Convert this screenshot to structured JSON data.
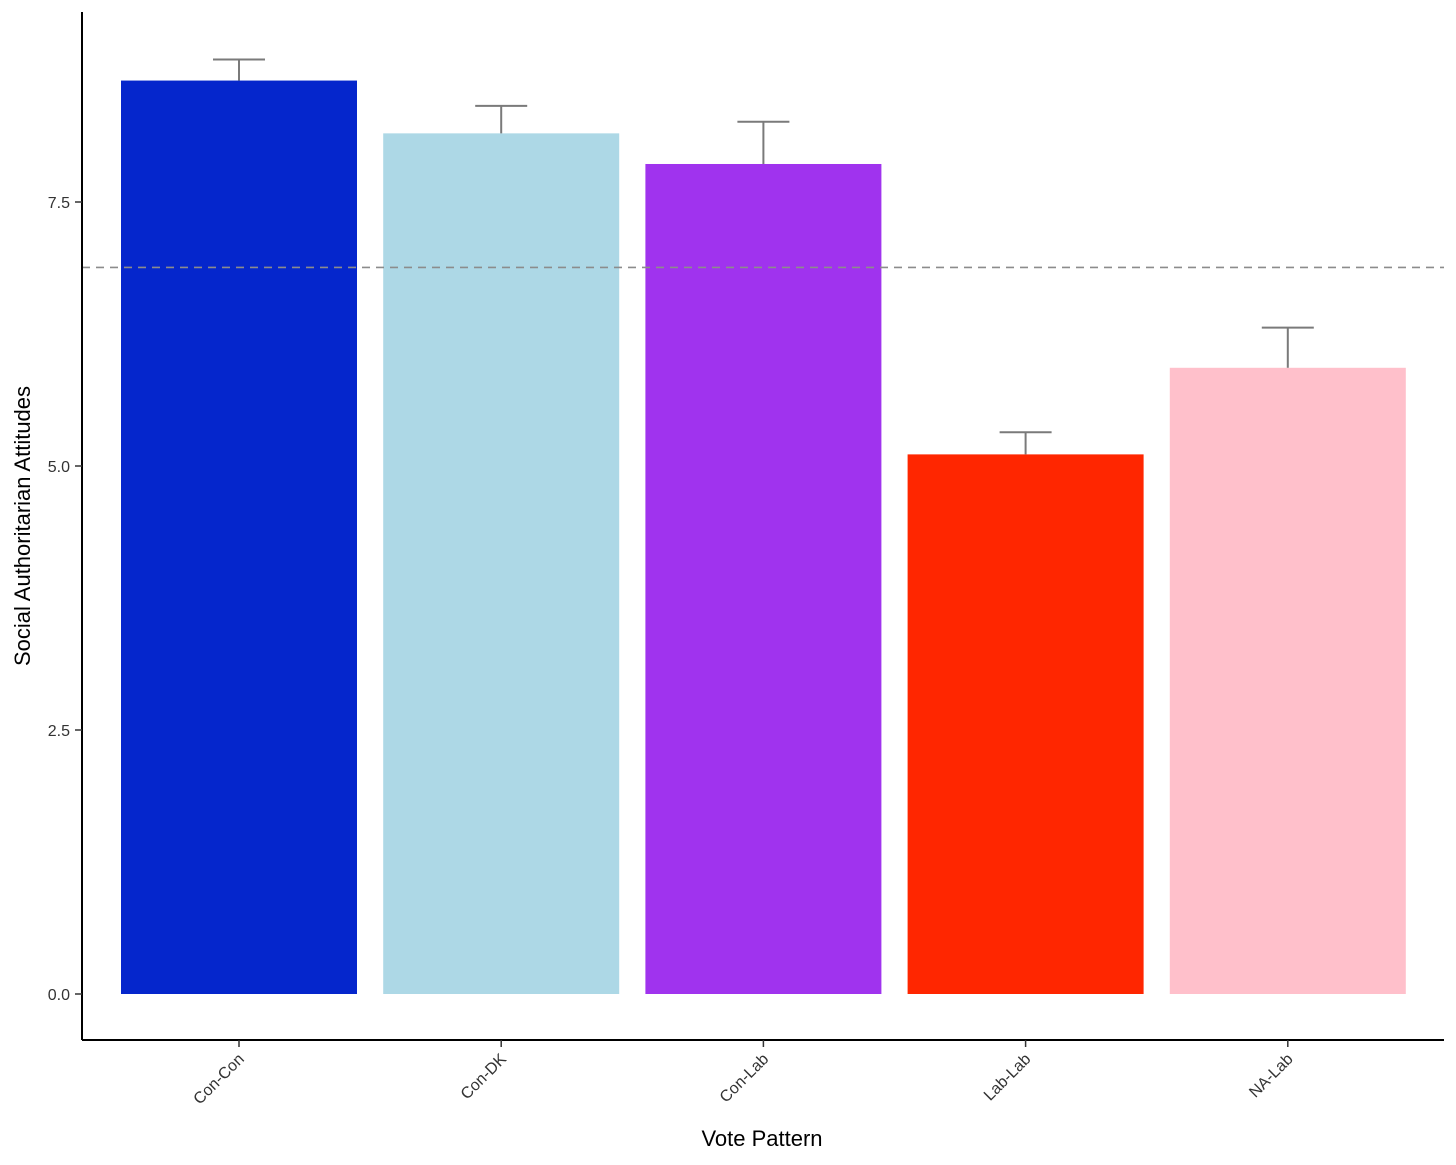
{
  "chart_data": {
    "type": "bar",
    "title": "",
    "xlabel": "Vote Pattern",
    "ylabel": "Social Authoritarian Attitudes",
    "categories": [
      "Con-Con",
      "Con-DK",
      "Con-Lab",
      "Lab-Lab",
      "NA-Lab"
    ],
    "values": [
      8.65,
      8.15,
      7.86,
      5.11,
      5.93
    ],
    "error_upper": [
      8.85,
      8.41,
      8.26,
      5.32,
      6.31
    ],
    "colors": [
      "#0526CC",
      "#ADD8E6",
      "#A033EE",
      "#FF2600",
      "#FFC0CB"
    ],
    "reference_line": 6.88,
    "yticks": [
      "0.0",
      "2.5",
      "5.0",
      "7.5"
    ],
    "ytick_values": [
      0,
      2.5,
      5,
      7.5
    ],
    "ylim": [
      -0.44,
      9.3
    ],
    "grid": false,
    "legend": "none"
  }
}
